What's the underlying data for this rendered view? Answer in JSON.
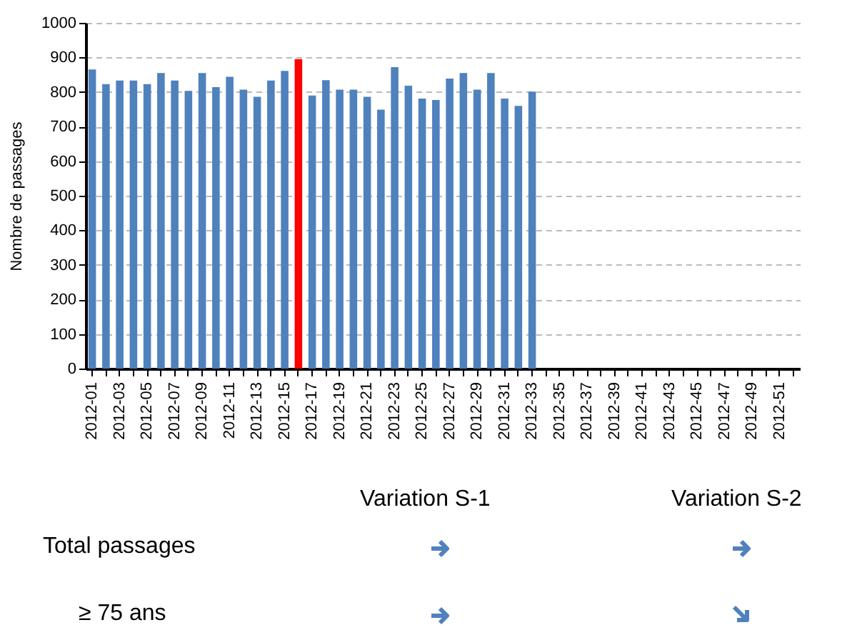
{
  "chart_data": {
    "type": "bar",
    "categories": [
      "2012-01",
      null,
      "2012-03",
      null,
      "2012-05",
      null,
      "2012-07",
      null,
      "2012-09",
      null,
      "2012-11",
      null,
      "2012-13",
      null,
      "2012-15",
      null,
      "2012-17",
      null,
      "2012-19",
      null,
      "2012-21",
      null,
      "2012-23",
      null,
      "2012-25",
      null,
      "2012-27",
      null,
      "2012-29",
      null,
      "2012-31",
      null,
      "2012-33",
      null,
      "2012-35",
      null,
      "2012-37",
      null,
      "2012-39",
      null,
      "2012-41",
      null,
      "2012-43",
      null,
      "2012-45",
      null,
      "2012-47",
      null,
      "2012-49",
      null,
      "2012-51",
      null
    ],
    "values": [
      865,
      823,
      833,
      833,
      823,
      855,
      833,
      803,
      855,
      814,
      844,
      807,
      786,
      833,
      861,
      895,
      790,
      834,
      807,
      807,
      786,
      749,
      872,
      818,
      781,
      777,
      839,
      855,
      807,
      855,
      781,
      760,
      801,
      null,
      null,
      null,
      null,
      null,
      null,
      null,
      null,
      null,
      null,
      null,
      null,
      null,
      null,
      null,
      null,
      null,
      null,
      null
    ],
    "colors": [
      "#4f81bd",
      "#4f81bd",
      "#4f81bd",
      "#4f81bd",
      "#4f81bd",
      "#4f81bd",
      "#4f81bd",
      "#4f81bd",
      "#4f81bd",
      "#4f81bd",
      "#4f81bd",
      "#4f81bd",
      "#4f81bd",
      "#4f81bd",
      "#4f81bd",
      "#ff0000",
      "#4f81bd",
      "#4f81bd",
      "#4f81bd",
      "#4f81bd",
      "#4f81bd",
      "#4f81bd",
      "#4f81bd",
      "#4f81bd",
      "#4f81bd",
      "#4f81bd",
      "#4f81bd",
      "#4f81bd",
      "#4f81bd",
      "#4f81bd",
      "#4f81bd",
      "#4f81bd",
      "#4f81bd",
      "#4f81bd",
      "#4f81bd",
      "#4f81bd",
      "#4f81bd",
      "#4f81bd",
      "#4f81bd",
      "#4f81bd",
      "#4f81bd",
      "#4f81bd",
      "#4f81bd",
      "#4f81bd",
      "#4f81bd",
      "#4f81bd",
      "#4f81bd",
      "#4f81bd",
      "#4f81bd",
      "#4f81bd",
      "#4f81bd",
      "#4f81bd"
    ],
    "ylabel": "Nombre de passages",
    "ylim": [
      0,
      1000
    ],
    "yticks": [
      0,
      100,
      200,
      300,
      400,
      500,
      600,
      700,
      800,
      900,
      1000
    ],
    "grid": "y",
    "legend": false,
    "annotations": [
      "Variation S-1",
      "Variation S-2",
      "Total passages",
      "≥ 75 ans"
    ]
  }
}
